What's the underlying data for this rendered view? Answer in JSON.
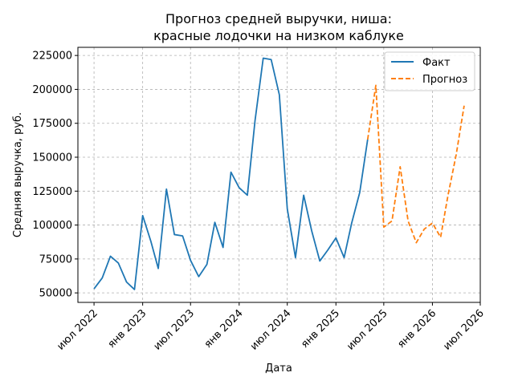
{
  "chart_data": {
    "type": "line",
    "title": [
      "Прогноз средней выручки, ниша:",
      "красные лодочки на низком каблуке"
    ],
    "xlabel": "Дата",
    "ylabel": "Средняя выручка, руб.",
    "xlim": [
      "2022-05-01",
      "2026-07-01"
    ],
    "ylim": [
      43000,
      231000
    ],
    "yticks": [
      50000,
      75000,
      100000,
      125000,
      150000,
      175000,
      200000,
      225000
    ],
    "xticks": [
      {
        "date": "2022-07-01",
        "label": "июл 2022"
      },
      {
        "date": "2023-01-01",
        "label": "янв 2023"
      },
      {
        "date": "2023-07-01",
        "label": "июл 2023"
      },
      {
        "date": "2024-01-01",
        "label": "янв 2024"
      },
      {
        "date": "2024-07-01",
        "label": "июл 2024"
      },
      {
        "date": "2025-01-01",
        "label": "янв 2025"
      },
      {
        "date": "2025-07-01",
        "label": "июл 2025"
      },
      {
        "date": "2026-01-01",
        "label": "янв 2026"
      },
      {
        "date": "2026-07-01",
        "label": "июл 2026"
      }
    ],
    "grid": true,
    "legend_position": "top-right",
    "series": [
      {
        "name": "Факт",
        "color": "#1f77b4",
        "style": "solid",
        "points": [
          [
            "2022-07-01",
            53000
          ],
          [
            "2022-08-01",
            61000
          ],
          [
            "2022-09-01",
            77000
          ],
          [
            "2022-10-01",
            72000
          ],
          [
            "2022-11-01",
            58000
          ],
          [
            "2022-12-01",
            52500
          ],
          [
            "2023-01-01",
            107000
          ],
          [
            "2023-02-01",
            88000
          ],
          [
            "2023-03-01",
            68000
          ],
          [
            "2023-04-01",
            126500
          ],
          [
            "2023-05-01",
            93000
          ],
          [
            "2023-06-01",
            92000
          ],
          [
            "2023-07-01",
            74000
          ],
          [
            "2023-08-01",
            62000
          ],
          [
            "2023-09-01",
            71000
          ],
          [
            "2023-10-01",
            102000
          ],
          [
            "2023-11-01",
            83500
          ],
          [
            "2023-12-01",
            139000
          ],
          [
            "2024-01-01",
            127500
          ],
          [
            "2024-02-01",
            122000
          ],
          [
            "2024-03-01",
            177000
          ],
          [
            "2024-04-01",
            223000
          ],
          [
            "2024-05-01",
            222000
          ],
          [
            "2024-06-01",
            196000
          ],
          [
            "2024-07-01",
            112000
          ],
          [
            "2024-08-01",
            76000
          ],
          [
            "2024-09-01",
            122000
          ],
          [
            "2024-10-01",
            96000
          ],
          [
            "2024-11-01",
            73500
          ],
          [
            "2024-12-01",
            81500
          ],
          [
            "2025-01-01",
            90500
          ],
          [
            "2025-02-01",
            76000
          ],
          [
            "2025-03-01",
            101000
          ],
          [
            "2025-04-01",
            124000
          ],
          [
            "2025-05-01",
            163000
          ]
        ]
      },
      {
        "name": "Прогноз",
        "color": "#ff7f0e",
        "style": "dashed",
        "points": [
          [
            "2025-05-01",
            163000
          ],
          [
            "2025-06-01",
            203000
          ],
          [
            "2025-07-01",
            98500
          ],
          [
            "2025-08-01",
            103000
          ],
          [
            "2025-09-01",
            143000
          ],
          [
            "2025-10-01",
            103000
          ],
          [
            "2025-11-01",
            87000
          ],
          [
            "2025-12-01",
            97000
          ],
          [
            "2026-01-01",
            101500
          ],
          [
            "2026-02-01",
            91000
          ],
          [
            "2026-03-01",
            122000
          ],
          [
            "2026-04-01",
            152000
          ],
          [
            "2026-05-01",
            188000
          ]
        ]
      }
    ]
  }
}
